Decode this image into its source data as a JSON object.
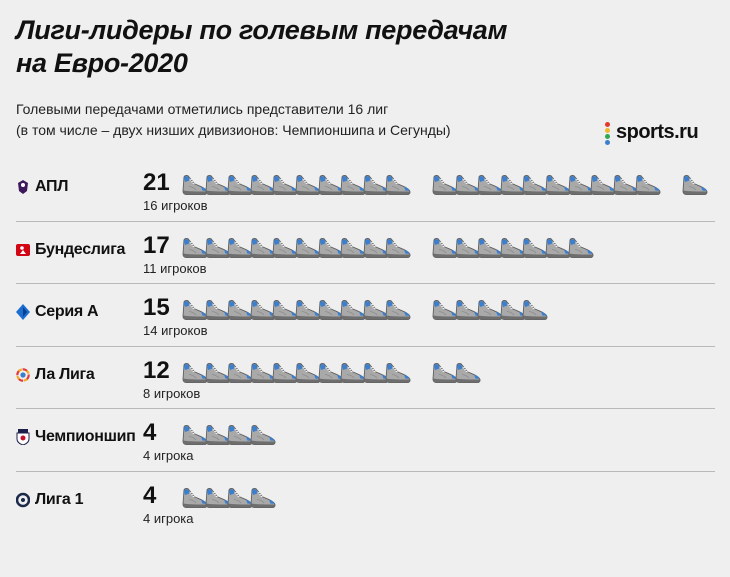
{
  "title": {
    "line1": "Лиги-лидеры по голевым передачам",
    "line2": "на Евро-2020"
  },
  "subtitle": {
    "line1": "Голевыми передачами отметились представители 16 лиг",
    "line2": "(в том числе – двух низших дивизионов: Чемпионшипа и Сегунды)"
  },
  "logo": {
    "text": "sports.ru"
  },
  "colors": {
    "shoe_body": "#a9a9a9",
    "shoe_accent": "#3a7fd0",
    "shoe_sole": "#6e6e6e",
    "background": "#efefef",
    "divider": "#b9b9b9"
  },
  "chart_data": {
    "type": "pictogram",
    "icon": "shoe-icon",
    "rows": [
      {
        "league": "АПЛ",
        "icon": "premier-league-icon",
        "assists": 21,
        "count_label": "21",
        "players_label": "16 игроков"
      },
      {
        "league": "Бундеслига",
        "icon": "bundesliga-icon",
        "assists": 17,
        "count_label": "17",
        "players_label": "11 игроков"
      },
      {
        "league": "Серия А",
        "icon": "serie-a-icon",
        "assists": 15,
        "count_label": "15",
        "players_label": "14 игроков"
      },
      {
        "league": "Ла Лига",
        "icon": "la-liga-icon",
        "assists": 12,
        "count_label": "12",
        "players_label": "8 игроков"
      },
      {
        "league": "Чемпионшип",
        "icon": "championship-icon",
        "assists": 4,
        "count_label": "4",
        "players_label": "4 игрока"
      },
      {
        "league": "Лига 1",
        "icon": "ligue-1-icon",
        "assists": 4,
        "count_label": "4",
        "players_label": "4 игрока"
      }
    ]
  }
}
